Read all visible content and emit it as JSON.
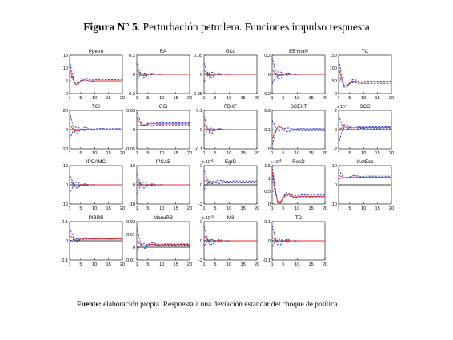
{
  "figure": {
    "title_bold": "Figura N° 5",
    "title_rest": ". Perturbación petrolera. Funciones impulso respuesta",
    "caption_bold": "Fuente:",
    "caption_rest": " elaboración propia.  Respuesta a una deviación estándar del choque de política."
  },
  "colors": {
    "response": "#e03030",
    "bands": "#2830c8",
    "zero": "#000000"
  },
  "chart_data": [
    {
      "type": "line",
      "title": "Ppetro",
      "x": [
        1,
        20
      ],
      "xticks": [
        1,
        5,
        10,
        15,
        20
      ],
      "ylim": [
        0,
        15
      ],
      "yticks": [
        "0",
        "5",
        "10",
        "15"
      ],
      "exponent": "",
      "series": [
        {
          "start": 10,
          "end": 5,
          "lower_start": 8,
          "lower_end": 5,
          "upper_start": 13,
          "upper_end": 5.5
        }
      ]
    },
    {
      "type": "line",
      "title": "RA",
      "x": [
        1,
        20
      ],
      "xticks": [
        1,
        5,
        10,
        15,
        20
      ],
      "ylim": [
        -0.2,
        0.2
      ],
      "yticks": [
        "-0.2",
        "0",
        "0.2"
      ],
      "exponent": "",
      "series": [
        {
          "start": 0.05,
          "end": 0,
          "lower_start": -0.05,
          "lower_end": 0,
          "upper_start": 0.12,
          "upper_end": 0
        }
      ]
    },
    {
      "type": "line",
      "title": "GCc",
      "x": [
        1,
        20
      ],
      "xticks": [
        1,
        5,
        10,
        15,
        20
      ],
      "ylim": [
        -0.05,
        0.05
      ],
      "yticks": [
        "-0.05",
        "0",
        "0.05"
      ],
      "exponent": "",
      "series": [
        {
          "start": 0.01,
          "end": 0,
          "lower_start": -0.02,
          "lower_end": 0,
          "upper_start": 0.03,
          "upper_end": 0
        }
      ]
    },
    {
      "type": "line",
      "title": "EEYmtN",
      "x": [
        1,
        20
      ],
      "xticks": [
        1,
        5,
        10,
        15,
        20
      ],
      "ylim": [
        -0.2,
        0.2
      ],
      "yticks": [
        "-0.2",
        "0",
        "0.2"
      ],
      "exponent": "",
      "series": [
        {
          "start": 0.05,
          "end": 0,
          "lower_start": -0.1,
          "lower_end": 0,
          "upper_start": 0.18,
          "upper_end": 0
        }
      ]
    },
    {
      "type": "line",
      "title": "TC",
      "x": [
        1,
        20
      ],
      "xticks": [
        1,
        5,
        10,
        15,
        20
      ],
      "ylim": [
        0,
        150
      ],
      "yticks": [
        "0",
        "50",
        "100",
        "150"
      ],
      "exponent": "",
      "series": [
        {
          "start": 100,
          "end": 45,
          "lower_start": 70,
          "lower_end": 40,
          "upper_start": 140,
          "upper_end": 48
        }
      ]
    },
    {
      "type": "line",
      "title": "TCI",
      "x": [
        1,
        20
      ],
      "xticks": [
        1,
        5,
        10,
        15,
        20
      ],
      "ylim": [
        -20,
        20
      ],
      "yticks": [
        "-20",
        "0",
        "20"
      ],
      "exponent": "",
      "series": [
        {
          "start": 5,
          "end": 0,
          "lower_start": -10,
          "lower_end": 0,
          "upper_start": 18,
          "upper_end": 1
        }
      ]
    },
    {
      "type": "line",
      "title": "GCi",
      "x": [
        1,
        20
      ],
      "xticks": [
        1,
        5,
        10,
        15,
        20
      ],
      "ylim": [
        -0.05,
        0.05
      ],
      "yticks": [
        "-0.05",
        "0",
        "0.05"
      ],
      "exponent": "",
      "series": [
        {
          "start": 0.03,
          "end": 0.015,
          "lower_start": 0.01,
          "lower_end": 0.012,
          "upper_start": 0.045,
          "upper_end": 0.018
        }
      ]
    },
    {
      "type": "line",
      "title": "FBKF",
      "x": [
        1,
        20
      ],
      "xticks": [
        1,
        5,
        10,
        15,
        20
      ],
      "ylim": [
        -0.1,
        0.1
      ],
      "yticks": [
        "-0.1",
        "0",
        "0.1"
      ],
      "exponent": "",
      "series": [
        {
          "start": 0.03,
          "end": 0,
          "lower_start": -0.03,
          "lower_end": 0,
          "upper_start": 0.07,
          "upper_end": 0
        }
      ]
    },
    {
      "type": "line",
      "title": "SCEXT",
      "x": [
        1,
        20
      ],
      "xticks": [
        1,
        5,
        10,
        15,
        20
      ],
      "ylim": [
        0,
        0.2
      ],
      "yticks": [
        "0",
        "0.1",
        "0.2"
      ],
      "exponent": "",
      "series": [
        {
          "start": 0.05,
          "end": 0.1,
          "lower_start": 0.02,
          "lower_end": 0.095,
          "upper_start": 0.15,
          "upper_end": 0.105
        }
      ]
    },
    {
      "type": "line",
      "title": "SCC",
      "x": [
        1,
        20
      ],
      "xticks": [
        1,
        5,
        10,
        15,
        20
      ],
      "ylim": [
        -2,
        2
      ],
      "yticks": [
        "-2",
        "0",
        "2"
      ],
      "exponent": "-4",
      "series": [
        {
          "start": 0,
          "end": 0.2,
          "lower_start": -1.5,
          "lower_end": 0.1,
          "upper_start": 1.5,
          "upper_end": 0.3
        }
      ]
    },
    {
      "type": "line",
      "title": "IPCAMC",
      "x": [
        1,
        20
      ],
      "xticks": [
        1,
        5,
        10,
        15,
        20
      ],
      "ylim": [
        -10,
        10
      ],
      "yticks": [
        "-10",
        "0",
        "10"
      ],
      "exponent": "",
      "series": [
        {
          "start": 2,
          "end": 0,
          "lower_start": -5,
          "lower_end": 0,
          "upper_start": 6,
          "upper_end": 0
        }
      ]
    },
    {
      "type": "line",
      "title": "IPCAB",
      "x": [
        1,
        20
      ],
      "xticks": [
        1,
        5,
        10,
        15,
        20
      ],
      "ylim": [
        -10,
        10
      ],
      "yticks": [
        "-10",
        "0",
        "10"
      ],
      "exponent": "",
      "series": [
        {
          "start": 2,
          "end": 0,
          "lower_start": -5,
          "lower_end": 0,
          "upper_start": 6,
          "upper_end": 0
        }
      ]
    },
    {
      "type": "line",
      "title": "EgrD",
      "x": [
        1,
        20
      ],
      "xticks": [
        1,
        5,
        10,
        15,
        20
      ],
      "ylim": [
        -2,
        2
      ],
      "yticks": [
        "-2",
        "0",
        "2"
      ],
      "exponent": "-4",
      "series": [
        {
          "start": 0.5,
          "end": 0.3,
          "lower_start": -0.5,
          "lower_end": 0.2,
          "upper_start": 1.5,
          "upper_end": 0.4
        }
      ]
    },
    {
      "type": "line",
      "title": "ResD",
      "x": [
        1,
        20
      ],
      "xticks": [
        1,
        5,
        10,
        15,
        20
      ],
      "ylim": [
        0,
        1.5
      ],
      "yticks": [
        "0",
        "0.5",
        "1",
        "1.5"
      ],
      "exponent": "-4",
      "series": [
        {
          "start": 1.3,
          "end": 0.3,
          "lower_start": 1.0,
          "lower_end": 0.28,
          "upper_start": 1.5,
          "upper_end": 0.35
        }
      ]
    },
    {
      "type": "line",
      "title": "lActEco",
      "x": [
        1,
        20
      ],
      "xticks": [
        1,
        5,
        10,
        15,
        20
      ],
      "ylim": [
        -10,
        10
      ],
      "yticks": [
        "-10",
        "0",
        "10"
      ],
      "exponent": "",
      "series": [
        {
          "start": 5,
          "end": 4,
          "lower_start": 3,
          "lower_end": 3.5,
          "upper_start": 8,
          "upper_end": 4.5
        }
      ]
    },
    {
      "type": "line",
      "title": "PIBRB",
      "x": [
        1,
        20
      ],
      "xticks": [
        1,
        5,
        10,
        15,
        20
      ],
      "ylim": [
        -0.1,
        0.1
      ],
      "yticks": [
        "-0.1",
        "0",
        "0.1"
      ],
      "exponent": "",
      "series": [
        {
          "start": 0.03,
          "end": 0.01,
          "lower_start": 0,
          "lower_end": 0.008,
          "upper_start": 0.07,
          "upper_end": 0.012
        }
      ]
    },
    {
      "type": "line",
      "title": "ManuRB",
      "x": [
        1,
        20
      ],
      "xticks": [
        1,
        5,
        10,
        15,
        20
      ],
      "ylim": [
        -0.01,
        0.02
      ],
      "yticks": [
        "-0.01",
        "0",
        "0.01",
        "0.02"
      ],
      "exponent": "",
      "series": [
        {
          "start": 0.005,
          "end": 0.002,
          "lower_start": -0.003,
          "lower_end": 0.0015,
          "upper_start": 0.015,
          "upper_end": 0.0025
        }
      ]
    },
    {
      "type": "line",
      "title": "M3",
      "x": [
        1,
        20
      ],
      "xticks": [
        1,
        5,
        10,
        15,
        20
      ],
      "ylim": [
        -2,
        2
      ],
      "yticks": [
        "-2",
        "0",
        "2"
      ],
      "exponent": "-3",
      "series": [
        {
          "start": 0.5,
          "end": 0,
          "lower_start": -0.5,
          "lower_end": 0,
          "upper_start": 1.5,
          "upper_end": 0
        }
      ]
    },
    {
      "type": "line",
      "title": "TD",
      "x": [
        1,
        20
      ],
      "xticks": [
        1,
        5,
        10,
        15,
        20
      ],
      "ylim": [
        -0.1,
        0.1
      ],
      "yticks": [
        "-0.1",
        "0",
        "0.1"
      ],
      "exponent": "",
      "series": [
        {
          "start": 0.02,
          "end": 0,
          "lower_start": -0.03,
          "lower_end": 0,
          "upper_start": 0.08,
          "upper_end": 0
        }
      ]
    }
  ]
}
